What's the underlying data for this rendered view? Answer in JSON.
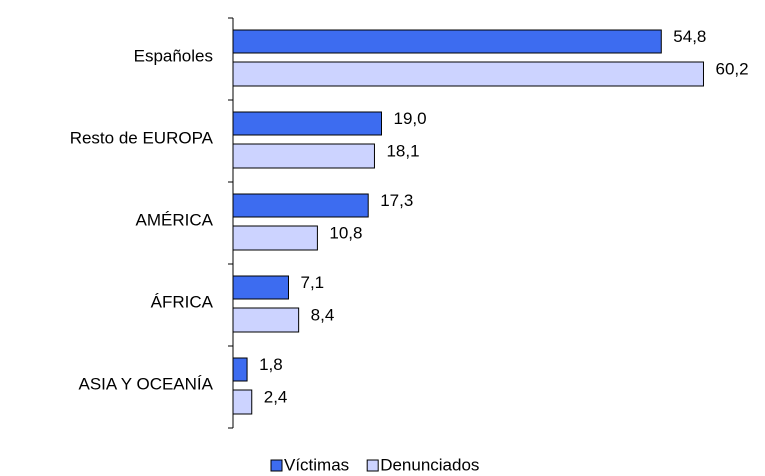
{
  "chart_data": {
    "type": "bar",
    "orientation": "horizontal",
    "categories": [
      "Españoles",
      "Resto de EUROPA",
      "AMÉRICA",
      "ÁFRICA",
      "ASIA Y OCEANÍA"
    ],
    "series": [
      {
        "name": "Víctimas",
        "color": "#3d6cf0",
        "values": [
          54.8,
          19.0,
          17.3,
          7.1,
          1.8
        ],
        "value_labels": [
          "54,8",
          "19,0",
          "17,3",
          "7,1",
          "1,8"
        ]
      },
      {
        "name": "Denunciados",
        "color": "#ccd3ff",
        "values": [
          60.2,
          18.1,
          10.8,
          8.4,
          2.4
        ],
        "value_labels": [
          "60,2",
          "18,1",
          "10,8",
          "8,4",
          "2,4"
        ]
      }
    ],
    "xlim": [
      0,
      65
    ],
    "legend": "bottom"
  }
}
